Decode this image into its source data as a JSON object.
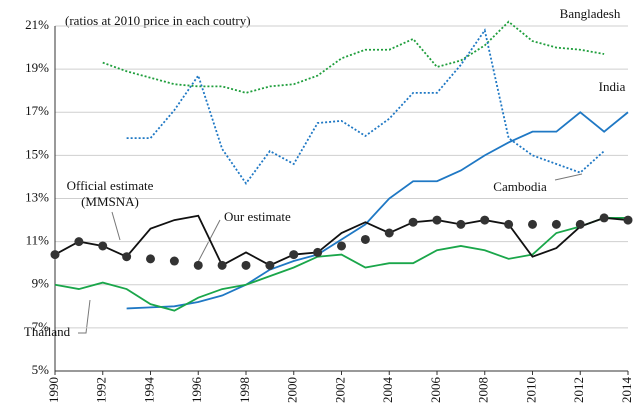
{
  "chart_data": {
    "type": "line",
    "subtitle": "(ratios at 2010 price in each coutry)",
    "x": [
      1990,
      1991,
      1992,
      1993,
      1994,
      1995,
      1996,
      1997,
      1998,
      1999,
      2000,
      2001,
      2002,
      2003,
      2004,
      2005,
      2006,
      2007,
      2008,
      2009,
      2010,
      2011,
      2012,
      2013,
      2014
    ],
    "series": [
      {
        "name": "Bangladesh",
        "color": "#1f9e3c",
        "style": "dotted",
        "values": [
          null,
          null,
          19.3,
          18.9,
          18.6,
          18.3,
          18.2,
          18.2,
          17.9,
          18.2,
          18.3,
          18.7,
          19.5,
          19.9,
          19.9,
          20.4,
          19.1,
          19.4,
          20.1,
          21.2,
          20.3,
          20.0,
          19.9,
          19.7,
          null
        ]
      },
      {
        "name": "Cambodia",
        "color": "#1f78c4",
        "style": "dotted",
        "values": [
          null,
          null,
          null,
          15.8,
          15.8,
          17.1,
          18.7,
          15.3,
          13.7,
          15.2,
          14.6,
          16.5,
          16.6,
          15.9,
          16.7,
          17.9,
          17.9,
          19.2,
          20.8,
          15.8,
          15.0,
          14.6,
          14.2,
          15.2,
          null
        ]
      },
      {
        "name": "India",
        "color": "#1f78c4",
        "style": "solid",
        "values": [
          null,
          null,
          null,
          7.9,
          7.95,
          8.0,
          8.2,
          8.5,
          9.0,
          9.7,
          10.1,
          10.4,
          11.1,
          11.8,
          13.0,
          13.8,
          13.8,
          14.3,
          15.0,
          15.6,
          16.1,
          16.1,
          17.0,
          16.1,
          17.0
        ]
      },
      {
        "name": "Thailand",
        "color": "#1aa64a",
        "style": "solid",
        "values": [
          9.0,
          8.8,
          9.1,
          8.8,
          8.1,
          7.8,
          8.4,
          8.8,
          9.0,
          9.4,
          9.8,
          10.3,
          10.4,
          9.8,
          10.0,
          10.0,
          10.6,
          10.8,
          10.6,
          10.2,
          10.4,
          11.4,
          11.7,
          12.1,
          12.1
        ]
      },
      {
        "name": "Official estimate (MMSNA)",
        "color": "#111111",
        "style": "solid",
        "values": [
          10.4,
          11.0,
          10.8,
          10.3,
          11.6,
          12.0,
          12.2,
          9.9,
          10.5,
          9.9,
          10.4,
          10.5,
          11.4,
          11.9,
          11.4,
          11.9,
          12.0,
          11.8,
          12.0,
          11.8,
          10.3,
          10.7,
          11.7,
          12.1,
          12.0
        ]
      },
      {
        "name": "Our estimate",
        "color": "#333333",
        "style": "markers",
        "values": [
          10.4,
          11.0,
          10.8,
          10.3,
          10.2,
          10.1,
          9.9,
          9.9,
          9.9,
          9.9,
          10.4,
          10.5,
          10.8,
          11.1,
          11.4,
          11.9,
          12.0,
          11.8,
          12.0,
          11.8,
          11.8,
          11.8,
          11.8,
          12.1,
          12.0
        ]
      }
    ],
    "xlim": [
      1990,
      2014
    ],
    "xticks": [
      1990,
      1992,
      1994,
      1996,
      1998,
      2000,
      2002,
      2004,
      2006,
      2008,
      2010,
      2012,
      2014
    ],
    "ylim": [
      5,
      21
    ],
    "yticks": [
      {
        "value": 5,
        "label": "5%"
      },
      {
        "value": 7,
        "label": "7%"
      },
      {
        "value": 9,
        "label": "9%"
      },
      {
        "value": 11,
        "label": "11%"
      },
      {
        "value": 13,
        "label": "13%"
      },
      {
        "value": 15,
        "label": "15%"
      },
      {
        "value": 17,
        "label": "17%"
      },
      {
        "value": 19,
        "label": "19%"
      },
      {
        "value": 21,
        "label": "21%"
      }
    ],
    "grid": true
  }
}
